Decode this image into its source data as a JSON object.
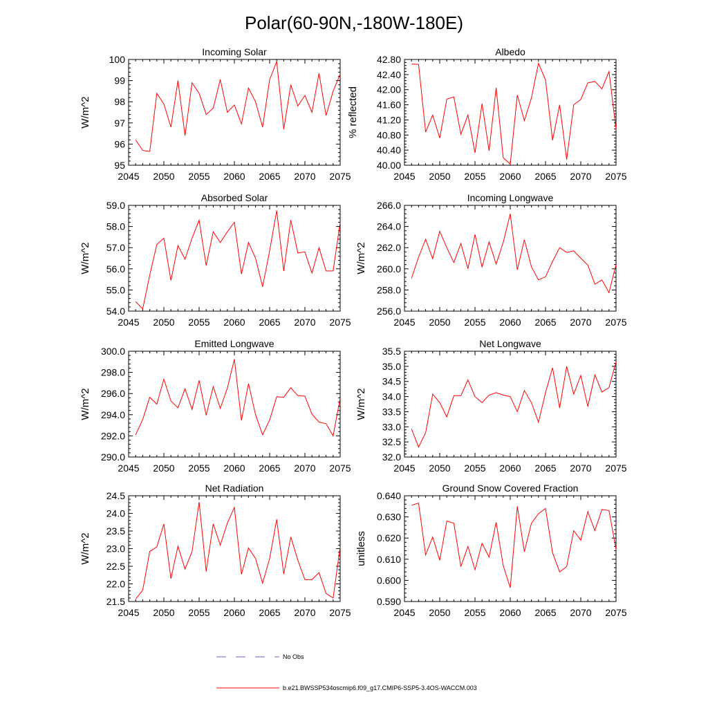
{
  "title": "Polar(60-90N,-180W-180E)",
  "legend": {
    "obs_label": "No Obs",
    "obs_color": "#6666cc",
    "model_label": "b.e21.BWSSP534oscmip6.f09_g17.CMIP6-SSP5-3.4OS-WACCM.003",
    "model_color": "#ff0000"
  },
  "chart_data": [
    {
      "type": "line",
      "title": "Incoming Solar",
      "ylabel": "W/m^2",
      "xlim": [
        2045,
        2075
      ],
      "ylim": [
        95,
        100
      ],
      "yticks": [
        95,
        96,
        97,
        98,
        99,
        100
      ],
      "ytick_labels": [
        "95",
        "96",
        "97",
        "98",
        "99",
        "100"
      ],
      "xticks": [
        2045,
        2050,
        2055,
        2060,
        2065,
        2070,
        2075
      ],
      "series": [
        {
          "name": "b.e21.BWSSP534oscmip6.f09_g17.CMIP6-SSP5-3.4OS-WACCM.003",
          "x": [
            2046,
            2047,
            2048,
            2049,
            2050,
            2051,
            2052,
            2053,
            2054,
            2055,
            2056,
            2057,
            2058,
            2059,
            2060,
            2061,
            2062,
            2063,
            2064,
            2065,
            2066,
            2067,
            2068,
            2069,
            2070,
            2071,
            2072,
            2073,
            2074,
            2075
          ],
          "values": [
            96.2,
            95.7,
            95.65,
            98.4,
            97.9,
            96.8,
            99.0,
            96.4,
            98.9,
            98.4,
            97.4,
            97.7,
            99.05,
            97.5,
            97.85,
            96.95,
            98.65,
            98.0,
            96.8,
            99.05,
            99.9,
            96.7,
            98.8,
            97.8,
            98.3,
            97.5,
            99.35,
            97.35,
            98.5,
            99.3
          ]
        }
      ]
    },
    {
      "type": "line",
      "title": "Albedo",
      "ylabel": "% reflected",
      "xlim": [
        2045,
        2075
      ],
      "ylim": [
        40.0,
        42.8
      ],
      "yticks": [
        40.0,
        40.4,
        40.8,
        41.2,
        41.6,
        42.0,
        42.4,
        42.8
      ],
      "ytick_labels": [
        "40.00",
        "40.40",
        "40.80",
        "41.20",
        "41.60",
        "42.00",
        "42.40",
        "42.80"
      ],
      "xticks": [
        2045,
        2050,
        2055,
        2060,
        2065,
        2070,
        2075
      ],
      "series": [
        {
          "name": "b.e21.BWSSP534oscmip6.f09_g17.CMIP6-SSP5-3.4OS-WACCM.003",
          "x": [
            2046,
            2047,
            2048,
            2049,
            2050,
            2051,
            2052,
            2053,
            2054,
            2055,
            2056,
            2057,
            2058,
            2059,
            2060,
            2061,
            2062,
            2063,
            2064,
            2065,
            2066,
            2067,
            2068,
            2069,
            2070,
            2071,
            2072,
            2073,
            2074,
            2075
          ],
          "values": [
            42.68,
            42.67,
            40.88,
            41.33,
            40.72,
            41.75,
            41.81,
            40.82,
            41.33,
            40.33,
            41.63,
            40.38,
            42.05,
            40.2,
            40.03,
            41.86,
            41.18,
            41.78,
            42.7,
            42.26,
            40.66,
            41.6,
            40.15,
            41.6,
            41.74,
            42.18,
            42.22,
            42.02,
            42.48,
            40.95
          ]
        }
      ]
    },
    {
      "type": "line",
      "title": "Absorbed Solar",
      "ylabel": "W/m^2",
      "xlim": [
        2045,
        2075
      ],
      "ylim": [
        54.0,
        59.0
      ],
      "yticks": [
        54.0,
        55.0,
        56.0,
        57.0,
        58.0,
        59.0
      ],
      "ytick_labels": [
        "54.0",
        "55.0",
        "56.0",
        "57.0",
        "58.0",
        "59.0"
      ],
      "xticks": [
        2045,
        2050,
        2055,
        2060,
        2065,
        2070,
        2075
      ],
      "series": [
        {
          "name": "b.e21.BWSSP534oscmip6.f09_g17.CMIP6-SSP5-3.4OS-WACCM.003",
          "x": [
            2046,
            2047,
            2048,
            2049,
            2050,
            2051,
            2052,
            2053,
            2054,
            2055,
            2056,
            2057,
            2058,
            2059,
            2060,
            2061,
            2062,
            2063,
            2064,
            2065,
            2066,
            2067,
            2068,
            2069,
            2070,
            2071,
            2072,
            2073,
            2074,
            2075
          ],
          "values": [
            54.45,
            54.1,
            55.7,
            57.15,
            57.45,
            55.45,
            57.1,
            56.45,
            57.45,
            58.3,
            56.15,
            57.75,
            57.25,
            57.75,
            58.2,
            55.75,
            57.25,
            56.5,
            55.15,
            56.85,
            58.75,
            55.9,
            58.3,
            56.75,
            56.8,
            55.8,
            57.0,
            55.9,
            55.9,
            58.2
          ]
        }
      ]
    },
    {
      "type": "line",
      "title": "Incoming Longwave",
      "ylabel": "W/m^2",
      "xlim": [
        2045,
        2075
      ],
      "ylim": [
        256.0,
        266.0
      ],
      "yticks": [
        256.0,
        258.0,
        260.0,
        262.0,
        264.0,
        266.0
      ],
      "ytick_labels": [
        "256.0",
        "258.0",
        "260.0",
        "262.0",
        "264.0",
        "266.0"
      ],
      "xticks": [
        2045,
        2050,
        2055,
        2060,
        2065,
        2070,
        2075
      ],
      "series": [
        {
          "name": "b.e21.BWSSP534oscmip6.f09_g17.CMIP6-SSP5-3.4OS-WACCM.003",
          "x": [
            2046,
            2047,
            2048,
            2049,
            2050,
            2051,
            2052,
            2053,
            2054,
            2055,
            2056,
            2057,
            2058,
            2059,
            2060,
            2061,
            2062,
            2063,
            2064,
            2065,
            2066,
            2067,
            2068,
            2069,
            2070,
            2071,
            2072,
            2073,
            2074,
            2075
          ],
          "values": [
            259.1,
            261.1,
            262.8,
            260.95,
            263.55,
            262.0,
            260.6,
            262.4,
            260.0,
            263.25,
            260.15,
            262.55,
            260.45,
            262.5,
            265.2,
            259.9,
            262.75,
            260.2,
            258.95,
            259.25,
            260.7,
            262.0,
            261.55,
            261.7,
            261.0,
            260.35,
            258.55,
            258.95,
            257.75,
            260.4
          ]
        }
      ]
    },
    {
      "type": "line",
      "title": "Emitted Longwave",
      "ylabel": "W/m^2",
      "xlim": [
        2045,
        2075
      ],
      "ylim": [
        290.0,
        300.0
      ],
      "yticks": [
        290.0,
        292.0,
        294.0,
        296.0,
        298.0,
        300.0
      ],
      "ytick_labels": [
        "290.0",
        "292.0",
        "294.0",
        "296.0",
        "298.0",
        "300.0"
      ],
      "xticks": [
        2045,
        2050,
        2055,
        2060,
        2065,
        2070,
        2075
      ],
      "series": [
        {
          "name": "b.e21.BWSSP534oscmip6.f09_g17.CMIP6-SSP5-3.4OS-WACCM.003",
          "x": [
            2046,
            2047,
            2048,
            2049,
            2050,
            2051,
            2052,
            2053,
            2054,
            2055,
            2056,
            2057,
            2058,
            2059,
            2060,
            2061,
            2062,
            2063,
            2064,
            2065,
            2066,
            2067,
            2068,
            2069,
            2070,
            2071,
            2072,
            2073,
            2074,
            2075
          ],
          "values": [
            292.1,
            293.55,
            295.65,
            295.0,
            297.35,
            295.3,
            294.65,
            296.45,
            294.5,
            297.25,
            293.95,
            296.65,
            294.6,
            296.5,
            299.25,
            293.45,
            296.95,
            294.0,
            292.1,
            293.5,
            295.7,
            295.65,
            296.55,
            295.8,
            295.75,
            294.05,
            293.3,
            293.15,
            292.0,
            295.55
          ]
        }
      ]
    },
    {
      "type": "line",
      "title": "Net Longwave",
      "ylabel": "W/m^2",
      "xlim": [
        2045,
        2075
      ],
      "ylim": [
        32.0,
        35.5
      ],
      "yticks": [
        32.0,
        32.5,
        33.0,
        33.5,
        34.0,
        34.5,
        35.0,
        35.5
      ],
      "ytick_labels": [
        "32.0",
        "32.5",
        "33.0",
        "33.5",
        "34.0",
        "34.5",
        "35.0",
        "35.5"
      ],
      "xticks": [
        2045,
        2050,
        2055,
        2060,
        2065,
        2070,
        2075
      ],
      "series": [
        {
          "name": "b.e21.BWSSP534oscmip6.f09_g17.CMIP6-SSP5-3.4OS-WACCM.003",
          "x": [
            2046,
            2047,
            2048,
            2049,
            2050,
            2051,
            2052,
            2053,
            2054,
            2055,
            2056,
            2057,
            2058,
            2059,
            2060,
            2061,
            2062,
            2063,
            2064,
            2065,
            2066,
            2067,
            2068,
            2069,
            2070,
            2071,
            2072,
            2073,
            2074,
            2075
          ],
          "values": [
            32.93,
            32.33,
            32.8,
            34.08,
            33.8,
            33.33,
            34.03,
            34.03,
            34.55,
            34.0,
            33.8,
            34.05,
            34.13,
            34.05,
            34.0,
            33.5,
            34.2,
            33.8,
            33.15,
            34.13,
            34.95,
            33.62,
            35.0,
            34.08,
            34.7,
            33.67,
            34.72,
            34.15,
            34.3,
            35.15
          ]
        }
      ]
    },
    {
      "type": "line",
      "title": "Net Radiation",
      "ylabel": "W/m^2",
      "xlim": [
        2045,
        2075
      ],
      "ylim": [
        21.5,
        24.5
      ],
      "yticks": [
        21.5,
        22.0,
        22.5,
        23.0,
        23.5,
        24.0,
        24.5
      ],
      "ytick_labels": [
        "21.5",
        "22.0",
        "22.5",
        "23.0",
        "23.5",
        "24.0",
        "24.5"
      ],
      "xticks": [
        2045,
        2050,
        2055,
        2060,
        2065,
        2070,
        2075
      ],
      "series": [
        {
          "name": "b.e21.BWSSP534oscmip6.f09_g17.CMIP6-SSP5-3.4OS-WACCM.003",
          "x": [
            2046,
            2047,
            2048,
            2049,
            2050,
            2051,
            2052,
            2053,
            2054,
            2055,
            2056,
            2057,
            2058,
            2059,
            2060,
            2061,
            2062,
            2063,
            2064,
            2065,
            2066,
            2067,
            2068,
            2069,
            2070,
            2071,
            2072,
            2073,
            2074,
            2075
          ],
          "values": [
            21.57,
            21.82,
            22.92,
            23.05,
            23.7,
            22.15,
            23.07,
            22.42,
            22.92,
            24.32,
            22.35,
            23.7,
            23.1,
            23.72,
            24.17,
            22.27,
            23.02,
            22.72,
            22.02,
            22.72,
            23.83,
            22.28,
            23.33,
            22.67,
            22.12,
            22.12,
            22.32,
            21.73,
            21.6,
            23.05
          ]
        }
      ]
    },
    {
      "type": "line",
      "title": "Ground Snow Covered Fraction",
      "ylabel": "unitless",
      "xlim": [
        2045,
        2075
      ],
      "ylim": [
        0.59,
        0.64
      ],
      "yticks": [
        0.59,
        0.6,
        0.61,
        0.62,
        0.63,
        0.64
      ],
      "ytick_labels": [
        "0.590",
        "0.600",
        "0.610",
        "0.620",
        "0.630",
        "0.640"
      ],
      "xticks": [
        2045,
        2050,
        2055,
        2060,
        2065,
        2070,
        2075
      ],
      "series": [
        {
          "name": "b.e21.BWSSP534oscmip6.f09_g17.CMIP6-SSP5-3.4OS-WACCM.003",
          "x": [
            2046,
            2047,
            2048,
            2049,
            2050,
            2051,
            2052,
            2053,
            2054,
            2055,
            2056,
            2057,
            2058,
            2059,
            2060,
            2061,
            2062,
            2063,
            2064,
            2065,
            2066,
            2067,
            2068,
            2069,
            2070,
            2071,
            2072,
            2073,
            2074,
            2075
          ],
          "values": [
            0.6355,
            0.6365,
            0.612,
            0.6205,
            0.6095,
            0.628,
            0.627,
            0.6065,
            0.616,
            0.605,
            0.6175,
            0.611,
            0.6275,
            0.607,
            0.5965,
            0.635,
            0.6135,
            0.627,
            0.6315,
            0.634,
            0.613,
            0.604,
            0.6065,
            0.6235,
            0.619,
            0.6325,
            0.6235,
            0.6335,
            0.633,
            0.6145
          ]
        }
      ]
    }
  ]
}
